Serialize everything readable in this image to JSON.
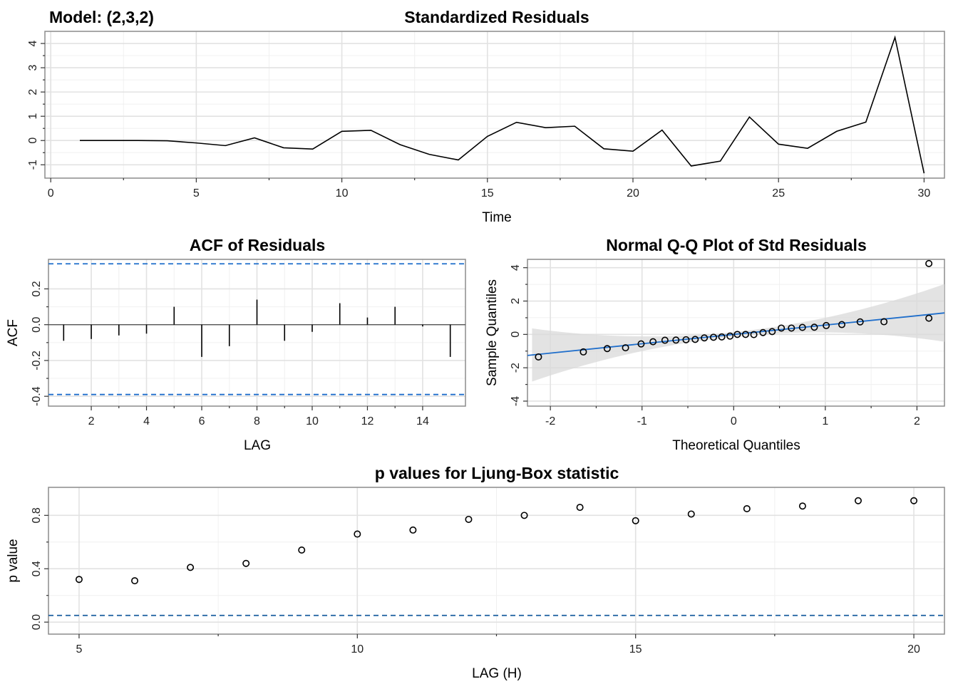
{
  "model_label": "Model: (2,3,2)",
  "chart_data": [
    {
      "id": "std-resid",
      "type": "line",
      "title": "Standardized Residuals",
      "xlabel": "Time",
      "ylabel": "",
      "xlim": [
        -0.2,
        30.7
      ],
      "ylim": [
        -1.55,
        4.5
      ],
      "xticks": [
        0,
        5,
        10,
        15,
        20,
        25,
        30
      ],
      "yticks": [
        -1,
        0,
        1,
        2,
        3,
        4
      ],
      "x": [
        1,
        2,
        3,
        4,
        5,
        6,
        7,
        8,
        9,
        10,
        11,
        12,
        13,
        14,
        15,
        16,
        17,
        18,
        19,
        20,
        21,
        22,
        23,
        24,
        25,
        26,
        27,
        28,
        29,
        30
      ],
      "y": [
        0.0,
        0.0,
        0.0,
        -0.01,
        -0.1,
        -0.21,
        0.11,
        -0.3,
        -0.35,
        0.38,
        0.42,
        -0.17,
        -0.57,
        -0.8,
        0.17,
        0.75,
        0.53,
        0.59,
        -0.34,
        -0.44,
        0.43,
        -1.05,
        -0.85,
        0.97,
        -0.15,
        -0.32,
        0.38,
        0.76,
        4.25,
        -1.35
      ],
      "grid": true
    },
    {
      "id": "acf",
      "type": "bar",
      "title": "ACF of Residuals",
      "xlabel": "LAG",
      "ylabel": "ACF",
      "xlim": [
        0.45,
        15.55
      ],
      "ylim": [
        -0.455,
        0.365
      ],
      "xticks": [
        2,
        4,
        6,
        8,
        10,
        12,
        14
      ],
      "yticks": [
        -0.4,
        -0.2,
        0.0,
        0.2
      ],
      "ytick_labels": [
        "-0.4",
        "-0.2",
        "0.0",
        "0.2"
      ],
      "lags": [
        1,
        2,
        3,
        4,
        5,
        6,
        7,
        8,
        9,
        10,
        11,
        12,
        13,
        14,
        15
      ],
      "values": [
        -0.09,
        -0.08,
        -0.06,
        -0.05,
        0.1,
        -0.18,
        -0.12,
        0.14,
        -0.09,
        -0.04,
        0.12,
        0.04,
        0.1,
        -0.01,
        -0.18
      ],
      "conf_limits": [
        0.34,
        -0.39
      ],
      "grid": true
    },
    {
      "id": "qq",
      "type": "scatter",
      "title": "Normal Q-Q Plot of Std Residuals",
      "xlabel": "Theoretical Quantiles",
      "ylabel": "Sample Quantiles",
      "xlim": [
        -2.25,
        2.3
      ],
      "ylim": [
        -4.3,
        4.5
      ],
      "xticks": [
        -2,
        -1,
        0,
        1,
        2
      ],
      "yticks": [
        -4,
        -2,
        0,
        2,
        4
      ],
      "x": [
        -2.13,
        -1.64,
        -1.38,
        -1.18,
        -1.01,
        -0.88,
        -0.75,
        -0.63,
        -0.52,
        -0.42,
        -0.32,
        -0.22,
        -0.13,
        -0.04,
        0.04,
        0.13,
        0.22,
        0.32,
        0.42,
        0.52,
        0.63,
        0.75,
        0.88,
        1.01,
        1.18,
        1.38,
        1.64,
        2.13
      ],
      "y": [
        -1.35,
        -1.05,
        -0.85,
        -0.8,
        -0.57,
        -0.44,
        -0.35,
        -0.34,
        -0.32,
        -0.3,
        -0.21,
        -0.17,
        -0.15,
        -0.1,
        0.0,
        0.0,
        -0.01,
        0.11,
        0.17,
        0.38,
        0.38,
        0.42,
        0.43,
        0.53,
        0.59,
        0.75,
        0.76,
        0.97
      ],
      "extra_point": {
        "x": 2.13,
        "y": 4.25
      },
      "ref_line": {
        "slope": 0.56,
        "intercept": 0.0
      },
      "band": {
        "width_at_center": 0.14,
        "growth": 0.3
      },
      "grid": true
    },
    {
      "id": "ljung-box",
      "type": "scatter",
      "title": "p values for Ljung-Box statistic",
      "xlabel": "LAG (H)",
      "ylabel": "p value",
      "xlim": [
        4.45,
        20.55
      ],
      "ylim": [
        -0.09,
        1.01
      ],
      "xticks": [
        5,
        10,
        15,
        20
      ],
      "yticks": [
        0.0,
        0.4,
        0.8
      ],
      "ytick_labels": [
        "0.0",
        "0.4",
        "0.8"
      ],
      "x": [
        5,
        6,
        7,
        8,
        9,
        10,
        11,
        12,
        13,
        14,
        15,
        16,
        17,
        18,
        19,
        20
      ],
      "y": [
        0.32,
        0.31,
        0.41,
        0.44,
        0.54,
        0.66,
        0.69,
        0.77,
        0.8,
        0.86,
        0.76,
        0.81,
        0.85,
        0.87,
        0.91,
        0.91
      ],
      "threshold": 0.05,
      "grid": true
    }
  ]
}
